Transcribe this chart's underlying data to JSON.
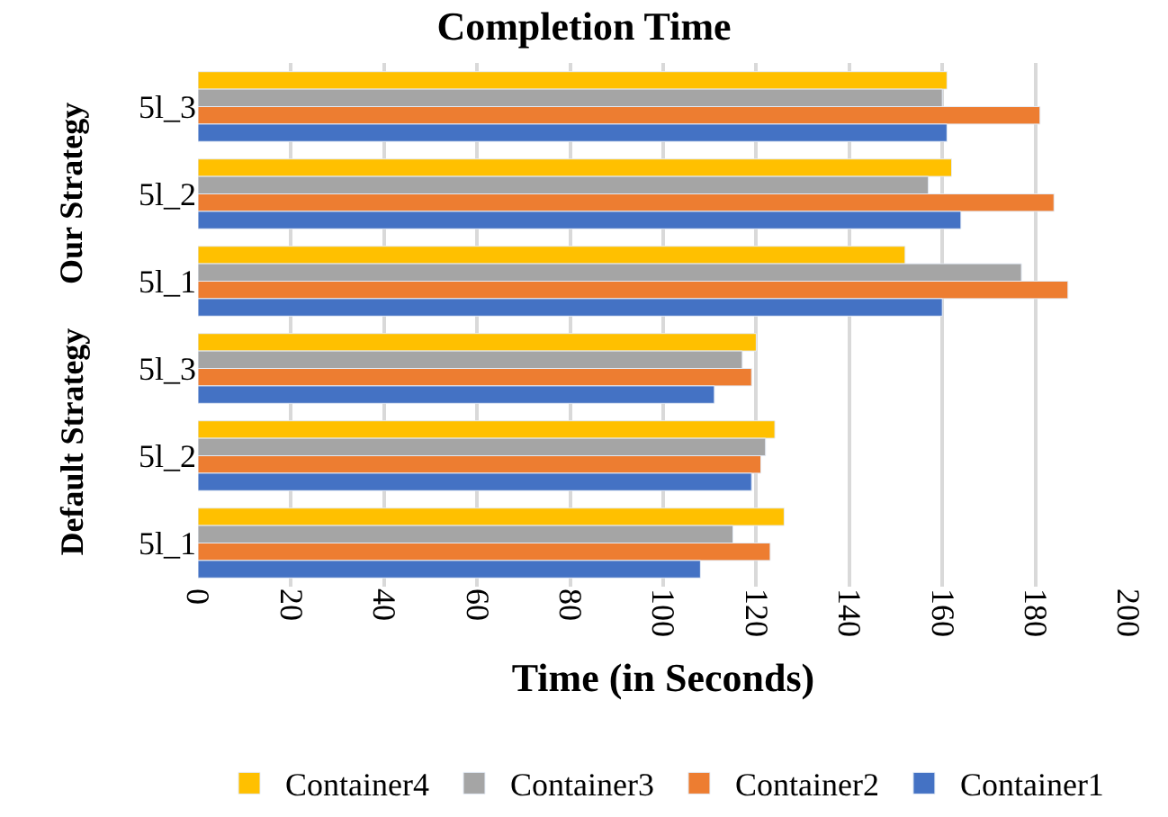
{
  "chart_data": {
    "type": "bar",
    "orientation": "horizontal",
    "title": "Completion Time",
    "xlabel": "Time (in Seconds)",
    "categories": [
      "5l_3",
      "5l_2",
      "5l_1",
      "5l_3",
      "5l_2",
      "5l_1"
    ],
    "series": [
      {
        "name": "Container4",
        "color": "#ffc000",
        "values": [
          161,
          162,
          152,
          120,
          124,
          126
        ]
      },
      {
        "name": "Container3",
        "color": "#a5a5a5",
        "values": [
          160,
          157,
          177,
          117,
          122,
          115
        ]
      },
      {
        "name": "Container2",
        "color": "#ed7d31",
        "values": [
          181,
          184,
          187,
          119,
          121,
          123
        ]
      },
      {
        "name": "Container1",
        "color": "#4472c4",
        "values": [
          161,
          164,
          160,
          111,
          119,
          108
        ]
      }
    ],
    "xlim": [
      0,
      200
    ],
    "xticks": [
      0,
      20,
      40,
      60,
      80,
      100,
      120,
      140,
      160,
      180,
      200
    ],
    "annotations": [
      "Our Strategy",
      "Default Strategy"
    ],
    "grid": "x",
    "legend": "bottom"
  }
}
